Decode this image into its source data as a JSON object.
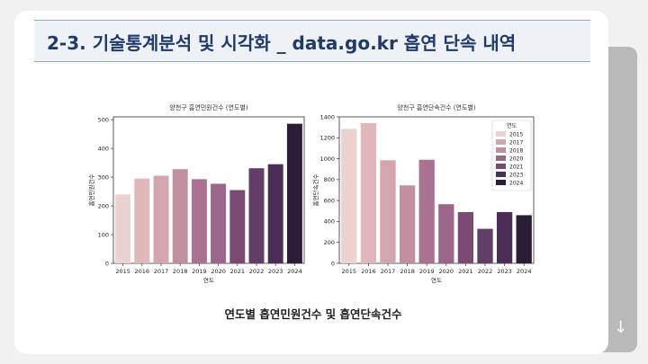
{
  "slide": {
    "title": "2-3. 기술통계분석 및 시각화 _ data.go.kr 흡연 단속 내역",
    "caption": "연도별 흡연민원건수 및 흡연단속건수",
    "nav_icon": "down-arrow-icon"
  },
  "chart_data": [
    {
      "type": "bar",
      "title": "양천구 흡연민원건수 (연도별)",
      "xlabel": "연도",
      "ylabel": "흡연민원건수",
      "categories": [
        "2015",
        "2016",
        "2017",
        "2018",
        "2019",
        "2020",
        "2021",
        "2022",
        "2023",
        "2024"
      ],
      "values": [
        240,
        295,
        305,
        328,
        293,
        277,
        255,
        331,
        345,
        486
      ],
      "ylim": [
        0,
        510
      ],
      "yticks": [
        0,
        100,
        200,
        300,
        400,
        500
      ],
      "colors": [
        "#ecd3d1",
        "#e0b8bb",
        "#d3a5ae",
        "#c28fa1",
        "#a97290",
        "#9a6689",
        "#7a4a74",
        "#623d68",
        "#4b2e57",
        "#2b1d38"
      ],
      "grid": false,
      "legend": "none"
    },
    {
      "type": "bar",
      "title": "양천구 흡연단속건수 (연도별)",
      "xlabel": "연도",
      "ylabel": "흡연단속건수",
      "categories": [
        "2015",
        "2016",
        "2017",
        "2018",
        "2019",
        "2020",
        "2021",
        "2022",
        "2023",
        "2024"
      ],
      "values": [
        1285,
        1340,
        985,
        745,
        990,
        565,
        490,
        330,
        490,
        460
      ],
      "ylim": [
        0,
        1400
      ],
      "yticks": [
        0,
        200,
        400,
        600,
        800,
        1000,
        1200,
        1400
      ],
      "colors": [
        "#ecd3d1",
        "#e0b8bb",
        "#d3a5ae",
        "#c28fa1",
        "#a97290",
        "#9a6689",
        "#7a4a74",
        "#623d68",
        "#4b2e57",
        "#2b1d38"
      ],
      "grid": false,
      "legend": "top-right",
      "legend_title": "연도",
      "legend_entries": [
        {
          "label": "2015",
          "color": "#ecd3d1"
        },
        {
          "label": "2017",
          "color": "#d3a5ae"
        },
        {
          "label": "2018",
          "color": "#c28fa1"
        },
        {
          "label": "2020",
          "color": "#9a6689"
        },
        {
          "label": "2021",
          "color": "#7a4a74"
        },
        {
          "label": "2023",
          "color": "#4b2e57"
        },
        {
          "label": "2024",
          "color": "#2b1d38"
        }
      ]
    }
  ]
}
